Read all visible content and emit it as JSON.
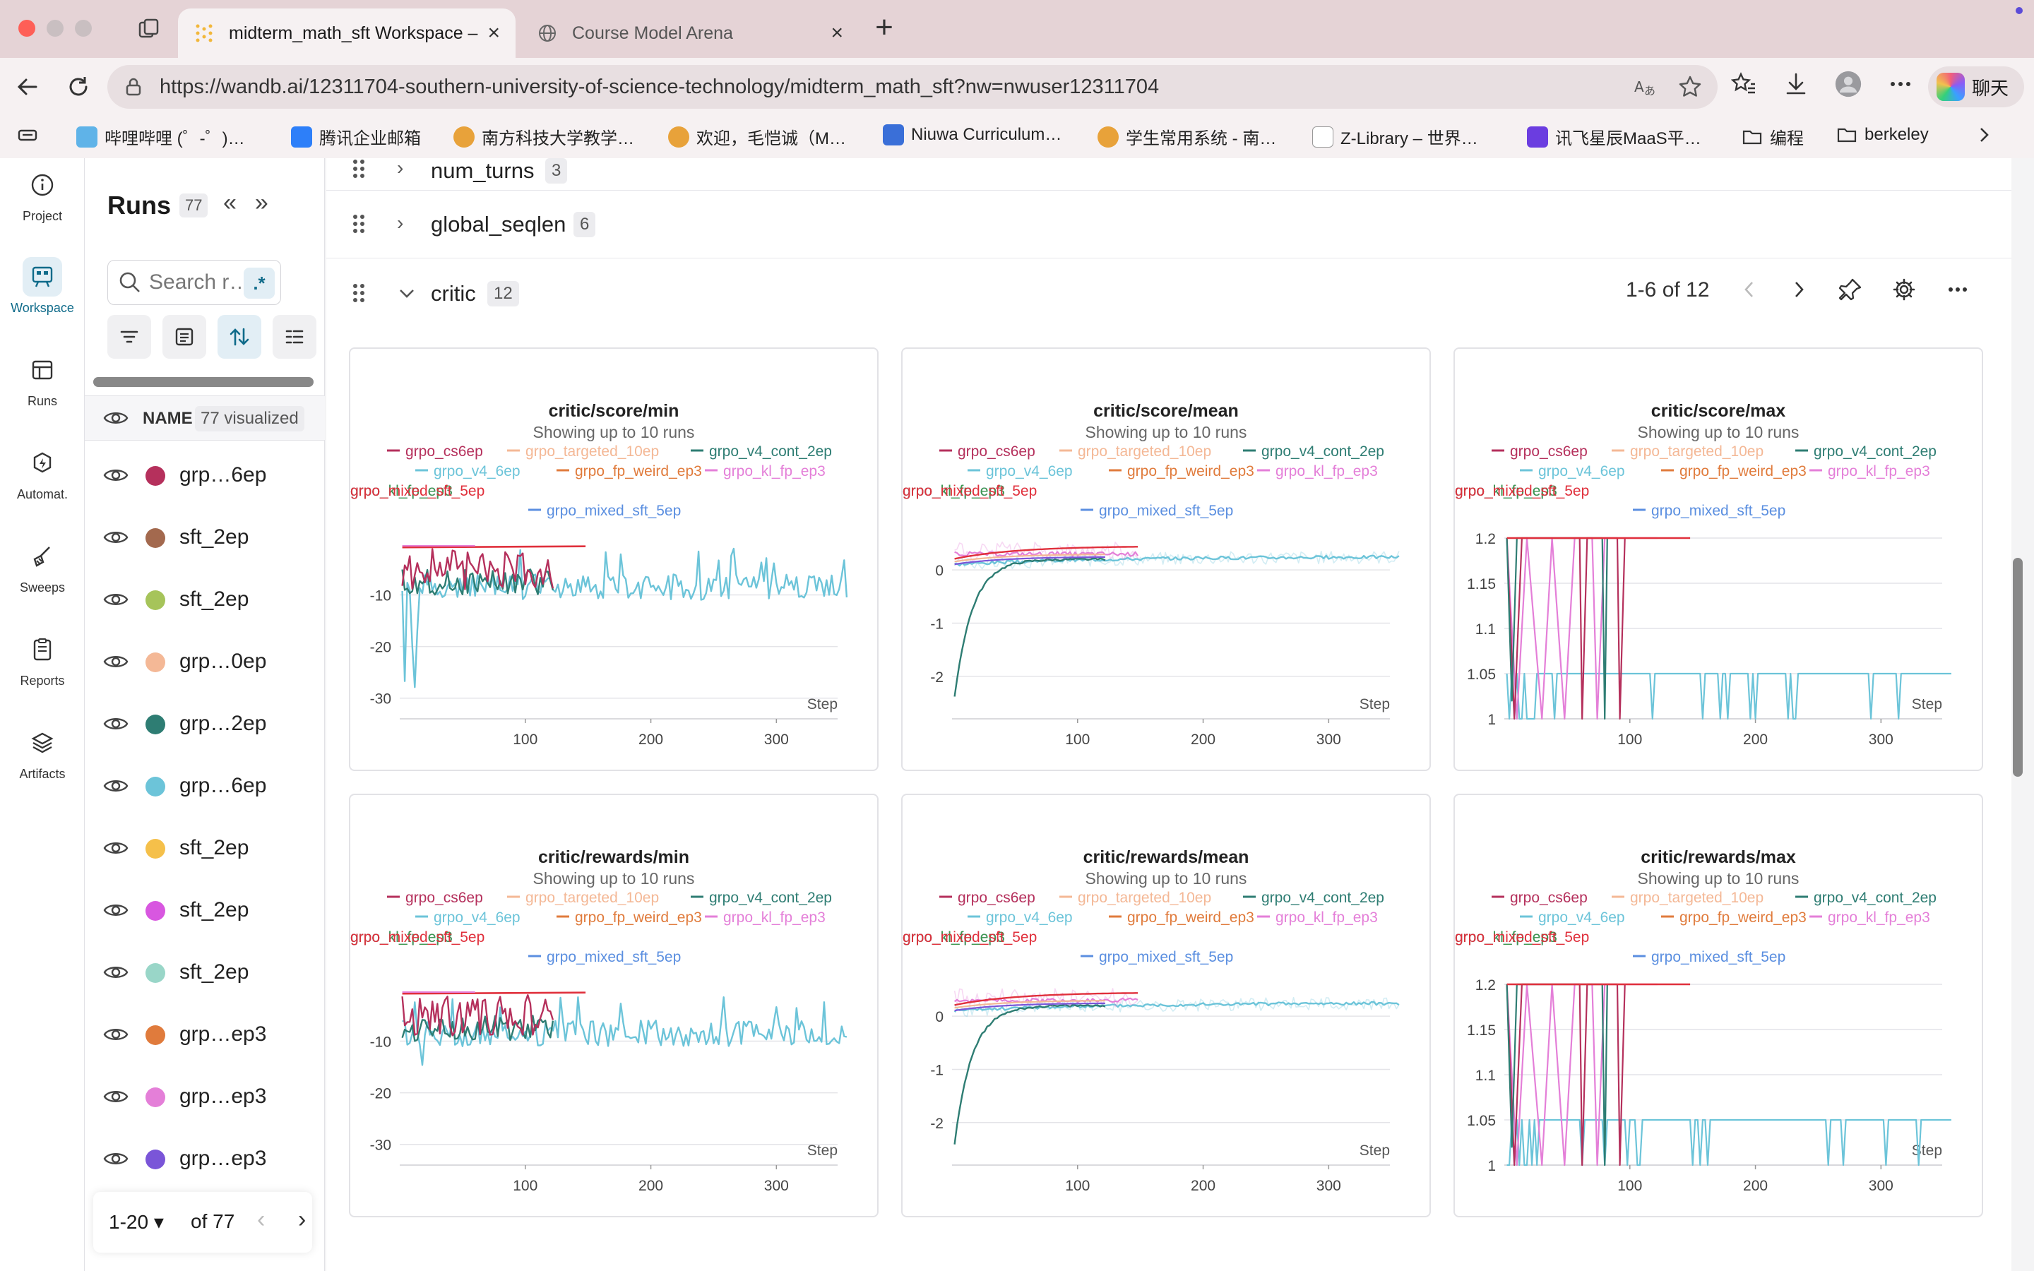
{
  "browser": {
    "tabs": [
      {
        "title": "midterm_math_sft Workspace –",
        "active": true
      },
      {
        "title": "Course Model Arena",
        "active": false
      }
    ],
    "url": "https://wandb.ai/12311704-southern-university-of-science-technology/midterm_math_sft?nw=nwuser12311704",
    "copilot_label": "聊天",
    "bookmarks": [
      "哔哩哔哩 (゜-゜)…",
      "腾讯企业邮箱",
      "南方科技大学教学…",
      "欢迎，毛恺诚（M…",
      "Niuwa Curriculum…",
      "学生常用系统 - 南…",
      "Z-Library – 世界…",
      "讯飞星辰MaaS平…",
      "编程",
      "berkeley"
    ]
  },
  "rail": {
    "items": [
      "Project",
      "Workspace",
      "Runs",
      "Automat.",
      "Sweeps",
      "Reports",
      "Artifacts"
    ]
  },
  "runs_panel": {
    "title": "Runs",
    "count": "77",
    "search_placeholder": "Search r…",
    "regex_label": ".*",
    "name_header": "NAME",
    "visualized": "77 visualized",
    "rows": [
      {
        "name": "grp…6ep",
        "color": "#b5305c"
      },
      {
        "name": "sft_2ep",
        "color": "#a3694e"
      },
      {
        "name": "sft_2ep",
        "color": "#a6c45a"
      },
      {
        "name": "grp…0ep",
        "color": "#f4b896"
      },
      {
        "name": "grp…2ep",
        "color": "#2e7d73"
      },
      {
        "name": "grp…6ep",
        "color": "#6cc4d9"
      },
      {
        "name": "sft_2ep",
        "color": "#f5c04a"
      },
      {
        "name": "sft_2ep",
        "color": "#d857e0"
      },
      {
        "name": "sft_2ep",
        "color": "#99d6c8"
      },
      {
        "name": "grp…ep3",
        "color": "#e07b3c"
      },
      {
        "name": "grp…ep3",
        "color": "#e47fd8"
      },
      {
        "name": "grp…ep3",
        "color": "#7a55d8"
      }
    ],
    "pager": {
      "range": "1-20",
      "of": "of 77"
    }
  },
  "sections": {
    "num_turns": {
      "name": "num_turns",
      "count": "3"
    },
    "global_seqlen": {
      "name": "global_seqlen",
      "count": "6"
    },
    "critic": {
      "name": "critic",
      "count": "12",
      "pager": "1-6 of 12"
    }
  },
  "legend": [
    {
      "name": "grpo_cs6ep",
      "color": "#b5305c"
    },
    {
      "name": "grpo_targeted_10ep",
      "color": "#f4b896"
    },
    {
      "name": "grpo_v4_cont_2ep",
      "color": "#2e7d73"
    },
    {
      "name": "grpo_v4_6ep",
      "color": "#6cc4d9"
    },
    {
      "name": "grpo_fp_weird_ep3",
      "color": "#e07b3c"
    },
    {
      "name": "grpo_kl_fp_ep3",
      "color": "#e47fd8"
    },
    {
      "name": "grpo_kl_fp_ep3",
      "color": "#7a55d8"
    },
    {
      "name": "grpo_kl_fp_ep3",
      "color": "#3e9a4f"
    },
    {
      "name": "grpo_mixed_sft_5ep",
      "color": "#e0303c"
    },
    {
      "name": "grpo_mixed_sft_5ep",
      "color": "#5b8fe0"
    }
  ],
  "chart_subtitle": "Showing up to 10 runs",
  "chart_data": [
    {
      "type": "line",
      "title": "critic/score/min",
      "xlabel": "Step",
      "ylabel": "",
      "xticks": [
        100,
        200,
        300
      ],
      "yticks": [
        -10,
        -20,
        -30
      ],
      "xlim": [
        0,
        360
      ],
      "ylim": [
        -34,
        1
      ]
    },
    {
      "type": "line",
      "title": "critic/score/mean",
      "xlabel": "Step",
      "ylabel": "",
      "xticks": [
        100,
        200,
        300
      ],
      "yticks": [
        0,
        -1,
        -2
      ],
      "xlim": [
        0,
        360
      ],
      "ylim": [
        -2.8,
        0.6
      ]
    },
    {
      "type": "line",
      "title": "critic/score/max",
      "xlabel": "Step",
      "ylabel": "",
      "xticks": [
        100,
        200,
        300
      ],
      "yticks": [
        1.2,
        1.15,
        1.1,
        1.05,
        1
      ],
      "xlim": [
        0,
        360
      ],
      "ylim": [
        1,
        1.2
      ]
    },
    {
      "type": "line",
      "title": "critic/rewards/min",
      "xlabel": "Step",
      "ylabel": "",
      "xticks": [
        100,
        200,
        300
      ],
      "yticks": [
        -10,
        -20,
        -30
      ],
      "xlim": [
        0,
        360
      ],
      "ylim": [
        -34,
        1
      ]
    },
    {
      "type": "line",
      "title": "critic/rewards/mean",
      "xlabel": "Step",
      "ylabel": "",
      "xticks": [
        100,
        200,
        300
      ],
      "yticks": [
        0,
        -1,
        -2
      ],
      "xlim": [
        0,
        360
      ],
      "ylim": [
        -2.8,
        0.6
      ]
    },
    {
      "type": "line",
      "title": "critic/rewards/max",
      "xlabel": "Step",
      "ylabel": "",
      "xticks": [
        100,
        200,
        300
      ],
      "yticks": [
        1.2,
        1.15,
        1.1,
        1.05,
        1
      ],
      "xlim": [
        0,
        360
      ],
      "ylim": [
        1,
        1.2
      ]
    }
  ]
}
